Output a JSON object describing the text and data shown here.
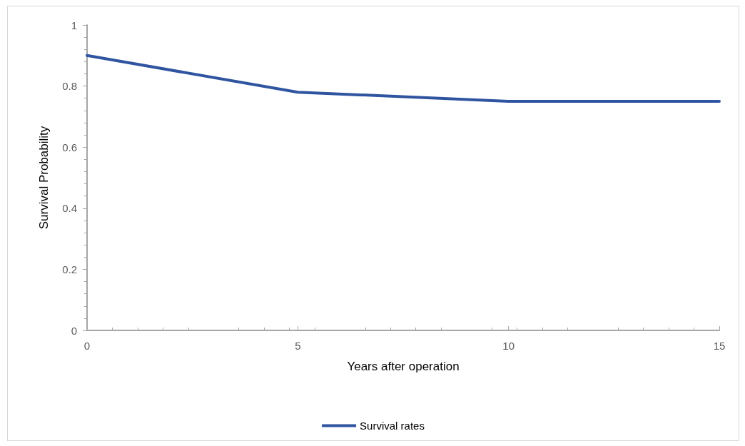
{
  "chart_data": {
    "type": "line",
    "xlabel": "Years after operation",
    "ylabel": "Survival Probability",
    "x": [
      0,
      5,
      10,
      15
    ],
    "series": [
      {
        "name": "Survival rates",
        "color": "#2f54a0",
        "values": [
          0.9,
          0.78,
          0.75,
          0.75
        ]
      }
    ],
    "xlim": [
      0,
      15
    ],
    "xticks": [
      0,
      5,
      10,
      15
    ],
    "ylim": [
      0,
      1
    ],
    "yticks": [
      0,
      0.2,
      0.4,
      0.6,
      0.8,
      1
    ],
    "grid": false,
    "legend": "bottom",
    "marker": "none",
    "line_style": "solid"
  }
}
